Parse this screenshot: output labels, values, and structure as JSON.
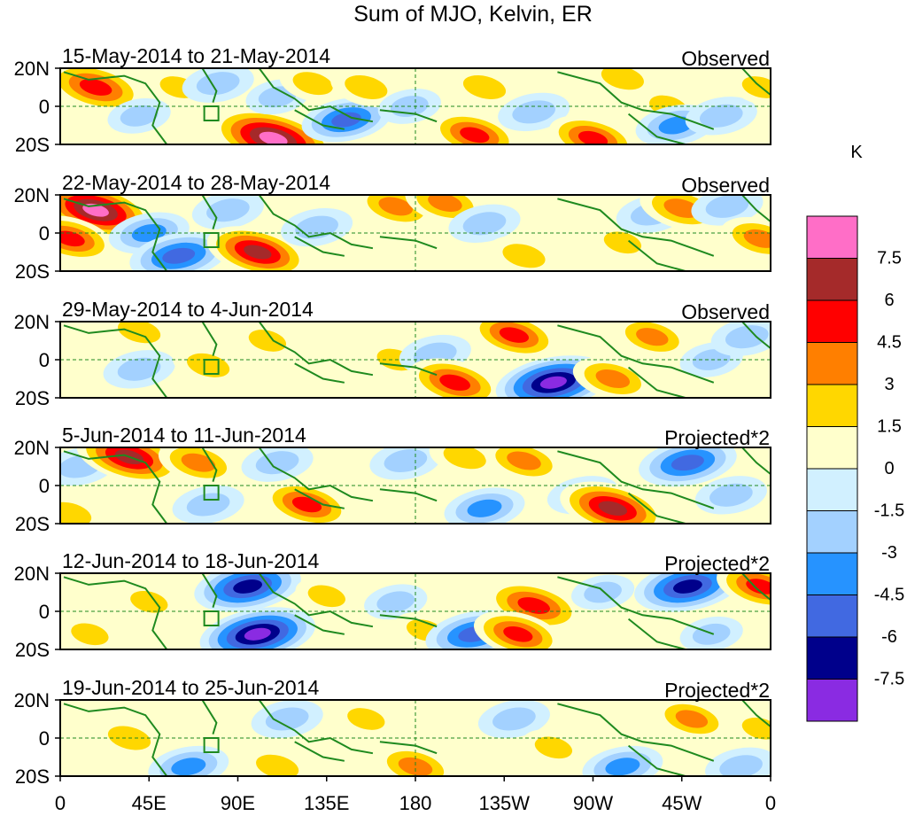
{
  "chart_data": {
    "type": "heatmap",
    "title": "Sum of MJO, Kelvin, ER",
    "units": "K",
    "xlim": [
      0,
      360
    ],
    "ylim": [
      -20,
      20
    ],
    "x_ticks": [
      "0",
      "45E",
      "90E",
      "135E",
      "180",
      "135W",
      "90W",
      "45W",
      "0"
    ],
    "y_ticks": [
      "20N",
      "0",
      "20S"
    ],
    "colorbar": {
      "levels": [
        "7.5",
        "6",
        "4.5",
        "3",
        "1.5",
        "0",
        "-1.5",
        "-3",
        "-4.5",
        "-6",
        "-7.5"
      ],
      "colors": [
        "#ff6ec7",
        "#a52a2a",
        "#ff0000",
        "#ff7f00",
        "#ffd700",
        "#ffffcc",
        "#d1f0ff",
        "#a3d1ff",
        "#2693ff",
        "#4169e1",
        "#00008b",
        "#8a2be2"
      ]
    },
    "panels": [
      {
        "period": "15-May-2014 to 21-May-2014",
        "status": "Observed",
        "anomalies": [
          {
            "lon": 18,
            "lat": 10,
            "value": 6
          },
          {
            "lon": 40,
            "lat": -5,
            "value": -2
          },
          {
            "lon": 60,
            "lat": 10,
            "value": 2
          },
          {
            "lon": 80,
            "lat": 12,
            "value": -3
          },
          {
            "lon": 108,
            "lat": -17,
            "value": 9
          },
          {
            "lon": 110,
            "lat": 5,
            "value": -2
          },
          {
            "lon": 128,
            "lat": 12,
            "value": 2.5
          },
          {
            "lon": 145,
            "lat": -7,
            "value": -5
          },
          {
            "lon": 155,
            "lat": 10,
            "value": 3
          },
          {
            "lon": 177,
            "lat": 0,
            "value": -2
          },
          {
            "lon": 215,
            "lat": 10,
            "value": 3
          },
          {
            "lon": 210,
            "lat": -15,
            "value": 5
          },
          {
            "lon": 240,
            "lat": -3,
            "value": -3
          },
          {
            "lon": 270,
            "lat": -17,
            "value": 5
          },
          {
            "lon": 285,
            "lat": 15,
            "value": 3
          },
          {
            "lon": 308,
            "lat": 0,
            "value": 2
          },
          {
            "lon": 312,
            "lat": -10,
            "value": -4
          },
          {
            "lon": 335,
            "lat": -5,
            "value": -3
          },
          {
            "lon": 355,
            "lat": 10,
            "value": 2
          }
        ]
      },
      {
        "period": "22-May-2014 to 28-May-2014",
        "status": "Observed",
        "anomalies": [
          {
            "lon": 18,
            "lat": 12,
            "value": 8
          },
          {
            "lon": 5,
            "lat": -3,
            "value": 5
          },
          {
            "lon": 45,
            "lat": 0,
            "value": -4
          },
          {
            "lon": 60,
            "lat": -12,
            "value": -6
          },
          {
            "lon": 85,
            "lat": 12,
            "value": -3
          },
          {
            "lon": 100,
            "lat": -10,
            "value": 6.5
          },
          {
            "lon": 130,
            "lat": 3,
            "value": -3
          },
          {
            "lon": 170,
            "lat": 14,
            "value": 4
          },
          {
            "lon": 195,
            "lat": 16,
            "value": 4
          },
          {
            "lon": 215,
            "lat": 5,
            "value": -3
          },
          {
            "lon": 235,
            "lat": -12,
            "value": 3
          },
          {
            "lon": 285,
            "lat": -5,
            "value": 2
          },
          {
            "lon": 300,
            "lat": 10,
            "value": -3
          },
          {
            "lon": 315,
            "lat": 13,
            "value": 4.5
          },
          {
            "lon": 338,
            "lat": 14,
            "value": -3
          },
          {
            "lon": 355,
            "lat": -3,
            "value": 4
          }
        ]
      },
      {
        "period": "29-May-2014 to 4-Jun-2014",
        "status": "Observed",
        "anomalies": [
          {
            "lon": 40,
            "lat": 15,
            "value": 3
          },
          {
            "lon": 40,
            "lat": -5,
            "value": -3
          },
          {
            "lon": 75,
            "lat": -3,
            "value": 3
          },
          {
            "lon": 105,
            "lat": 10,
            "value": 2
          },
          {
            "lon": 170,
            "lat": 0,
            "value": 2
          },
          {
            "lon": 190,
            "lat": 3,
            "value": -3
          },
          {
            "lon": 200,
            "lat": -12,
            "value": 5.5
          },
          {
            "lon": 230,
            "lat": 13,
            "value": 5
          },
          {
            "lon": 250,
            "lat": -12,
            "value": -8
          },
          {
            "lon": 280,
            "lat": -10,
            "value": 4
          },
          {
            "lon": 300,
            "lat": 12,
            "value": 3.5
          },
          {
            "lon": 330,
            "lat": 0,
            "value": -2
          },
          {
            "lon": 348,
            "lat": 12,
            "value": -3
          }
        ]
      },
      {
        "period": "5-Jun-2014 to 11-Jun-2014",
        "status": "Projected*2",
        "anomalies": [
          {
            "lon": 10,
            "lat": 10,
            "value": -3
          },
          {
            "lon": 35,
            "lat": 15,
            "value": 7
          },
          {
            "lon": 70,
            "lat": 12,
            "value": 4
          },
          {
            "lon": 75,
            "lat": -10,
            "value": -3
          },
          {
            "lon": 110,
            "lat": 12,
            "value": -3
          },
          {
            "lon": 125,
            "lat": -10,
            "value": 5
          },
          {
            "lon": 175,
            "lat": 13,
            "value": -3
          },
          {
            "lon": 205,
            "lat": 15,
            "value": 3
          },
          {
            "lon": 235,
            "lat": 13,
            "value": 4
          },
          {
            "lon": 215,
            "lat": -12,
            "value": -4
          },
          {
            "lon": 265,
            "lat": -5,
            "value": -3
          },
          {
            "lon": 280,
            "lat": -12,
            "value": 7
          },
          {
            "lon": 318,
            "lat": 12,
            "value": -6
          },
          {
            "lon": 340,
            "lat": -5,
            "value": -3
          },
          {
            "lon": 5,
            "lat": -15,
            "value": 3
          }
        ]
      },
      {
        "period": "12-Jun-2014 to 18-Jun-2014",
        "status": "Projected*2",
        "anomalies": [
          {
            "lon": 45,
            "lat": 5,
            "value": 2
          },
          {
            "lon": 15,
            "lat": -12,
            "value": 2
          },
          {
            "lon": 95,
            "lat": 13,
            "value": -7
          },
          {
            "lon": 100,
            "lat": -12,
            "value": -8
          },
          {
            "lon": 135,
            "lat": 8,
            "value": 2
          },
          {
            "lon": 170,
            "lat": 5,
            "value": -2
          },
          {
            "lon": 185,
            "lat": -10,
            "value": 2
          },
          {
            "lon": 210,
            "lat": -12,
            "value": -6
          },
          {
            "lon": 240,
            "lat": 3,
            "value": 6
          },
          {
            "lon": 232,
            "lat": -12,
            "value": 5
          },
          {
            "lon": 275,
            "lat": 10,
            "value": -2
          },
          {
            "lon": 318,
            "lat": 13,
            "value": -7
          },
          {
            "lon": 355,
            "lat": 13,
            "value": 5
          },
          {
            "lon": 330,
            "lat": -12,
            "value": -2
          }
        ]
      },
      {
        "period": "19-Jun-2014 to 25-Jun-2014",
        "status": "Projected*2",
        "anomalies": [
          {
            "lon": 35,
            "lat": 0,
            "value": 3
          },
          {
            "lon": 65,
            "lat": -15,
            "value": -4
          },
          {
            "lon": 110,
            "lat": -15,
            "value": 3
          },
          {
            "lon": 115,
            "lat": 10,
            "value": -3
          },
          {
            "lon": 155,
            "lat": 10,
            "value": 2
          },
          {
            "lon": 180,
            "lat": -15,
            "value": 4
          },
          {
            "lon": 230,
            "lat": 10,
            "value": -3
          },
          {
            "lon": 250,
            "lat": -5,
            "value": 2
          },
          {
            "lon": 285,
            "lat": -15,
            "value": -4
          },
          {
            "lon": 320,
            "lat": 10,
            "value": 3.5
          },
          {
            "lon": 345,
            "lat": -15,
            "value": -3
          },
          {
            "lon": 355,
            "lat": 5,
            "value": 2
          }
        ]
      }
    ]
  }
}
